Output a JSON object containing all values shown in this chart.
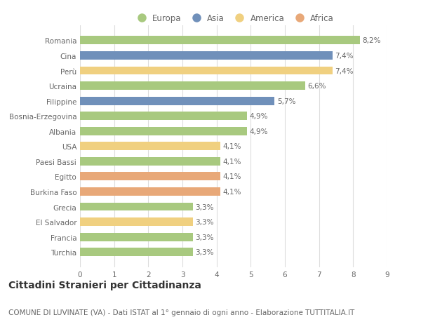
{
  "countries": [
    "Romania",
    "Cina",
    "Perù",
    "Ucraina",
    "Filippine",
    "Bosnia-Erzegovina",
    "Albania",
    "USA",
    "Paesi Bassi",
    "Egitto",
    "Burkina Faso",
    "Grecia",
    "El Salvador",
    "Francia",
    "Turchia"
  ],
  "values": [
    8.2,
    7.4,
    7.4,
    6.6,
    5.7,
    4.9,
    4.9,
    4.1,
    4.1,
    4.1,
    4.1,
    3.3,
    3.3,
    3.3,
    3.3
  ],
  "labels": [
    "8,2%",
    "7,4%",
    "7,4%",
    "6,6%",
    "5,7%",
    "4,9%",
    "4,9%",
    "4,1%",
    "4,1%",
    "4,1%",
    "4,1%",
    "3,3%",
    "3,3%",
    "3,3%",
    "3,3%"
  ],
  "continents": [
    "Europa",
    "Asia",
    "America",
    "Europa",
    "Asia",
    "Europa",
    "Europa",
    "America",
    "Europa",
    "Africa",
    "Africa",
    "Europa",
    "America",
    "Europa",
    "Europa"
  ],
  "colors": {
    "Europa": "#a8c97f",
    "Asia": "#7090ba",
    "America": "#f0d080",
    "Africa": "#e8a878"
  },
  "legend_order": [
    "Europa",
    "Asia",
    "America",
    "Africa"
  ],
  "xlim": [
    0,
    9
  ],
  "xticks": [
    0,
    1,
    2,
    3,
    4,
    5,
    6,
    7,
    8,
    9
  ],
  "title": "Cittadini Stranieri per Cittadinanza",
  "subtitle": "COMUNE DI LUVINATE (VA) - Dati ISTAT al 1° gennaio di ogni anno - Elaborazione TUTTITALIA.IT",
  "background_color": "#ffffff",
  "grid_color": "#dddddd",
  "bar_height": 0.55,
  "title_fontsize": 10,
  "subtitle_fontsize": 7.5,
  "label_fontsize": 7.5,
  "tick_fontsize": 7.5,
  "legend_fontsize": 8.5
}
